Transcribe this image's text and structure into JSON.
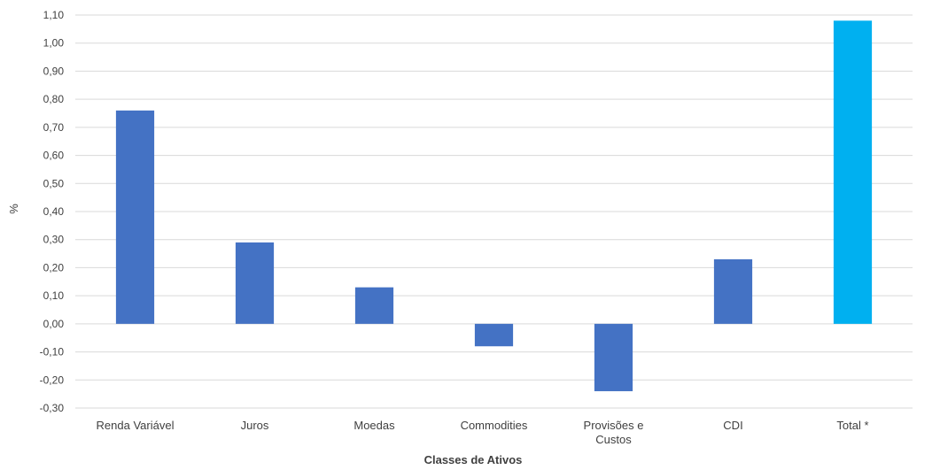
{
  "chart_data": {
    "type": "bar",
    "title": "",
    "xlabel": "Classes de Ativos",
    "ylabel": "%",
    "categories": [
      [
        "Renda Variável"
      ],
      [
        "Juros"
      ],
      [
        "Moedas"
      ],
      [
        "Commodities"
      ],
      [
        "Provisões e",
        "Custos"
      ],
      [
        "CDI"
      ],
      [
        "Total *"
      ]
    ],
    "values": [
      0.76,
      0.29,
      0.13,
      -0.08,
      -0.24,
      0.23,
      1.08
    ],
    "bar_colors": [
      "#4472c4",
      "#4472c4",
      "#4472c4",
      "#4472c4",
      "#4472c4",
      "#4472c4",
      "#00b0f0"
    ],
    "ylim": [
      -0.3,
      1.1
    ],
    "y_ticks": [
      -0.3,
      -0.2,
      -0.1,
      0.0,
      0.1,
      0.2,
      0.3,
      0.4,
      0.5,
      0.6,
      0.7,
      0.8,
      0.9,
      1.0,
      1.1
    ],
    "y_tick_labels": [
      "-0,30",
      "-0,20",
      "-0,10",
      "0,00",
      "0,10",
      "0,20",
      "0,30",
      "0,40",
      "0,50",
      "0,60",
      "0,70",
      "0,80",
      "0,90",
      "1,00",
      "1,10"
    ],
    "grid": true,
    "legend": false
  }
}
